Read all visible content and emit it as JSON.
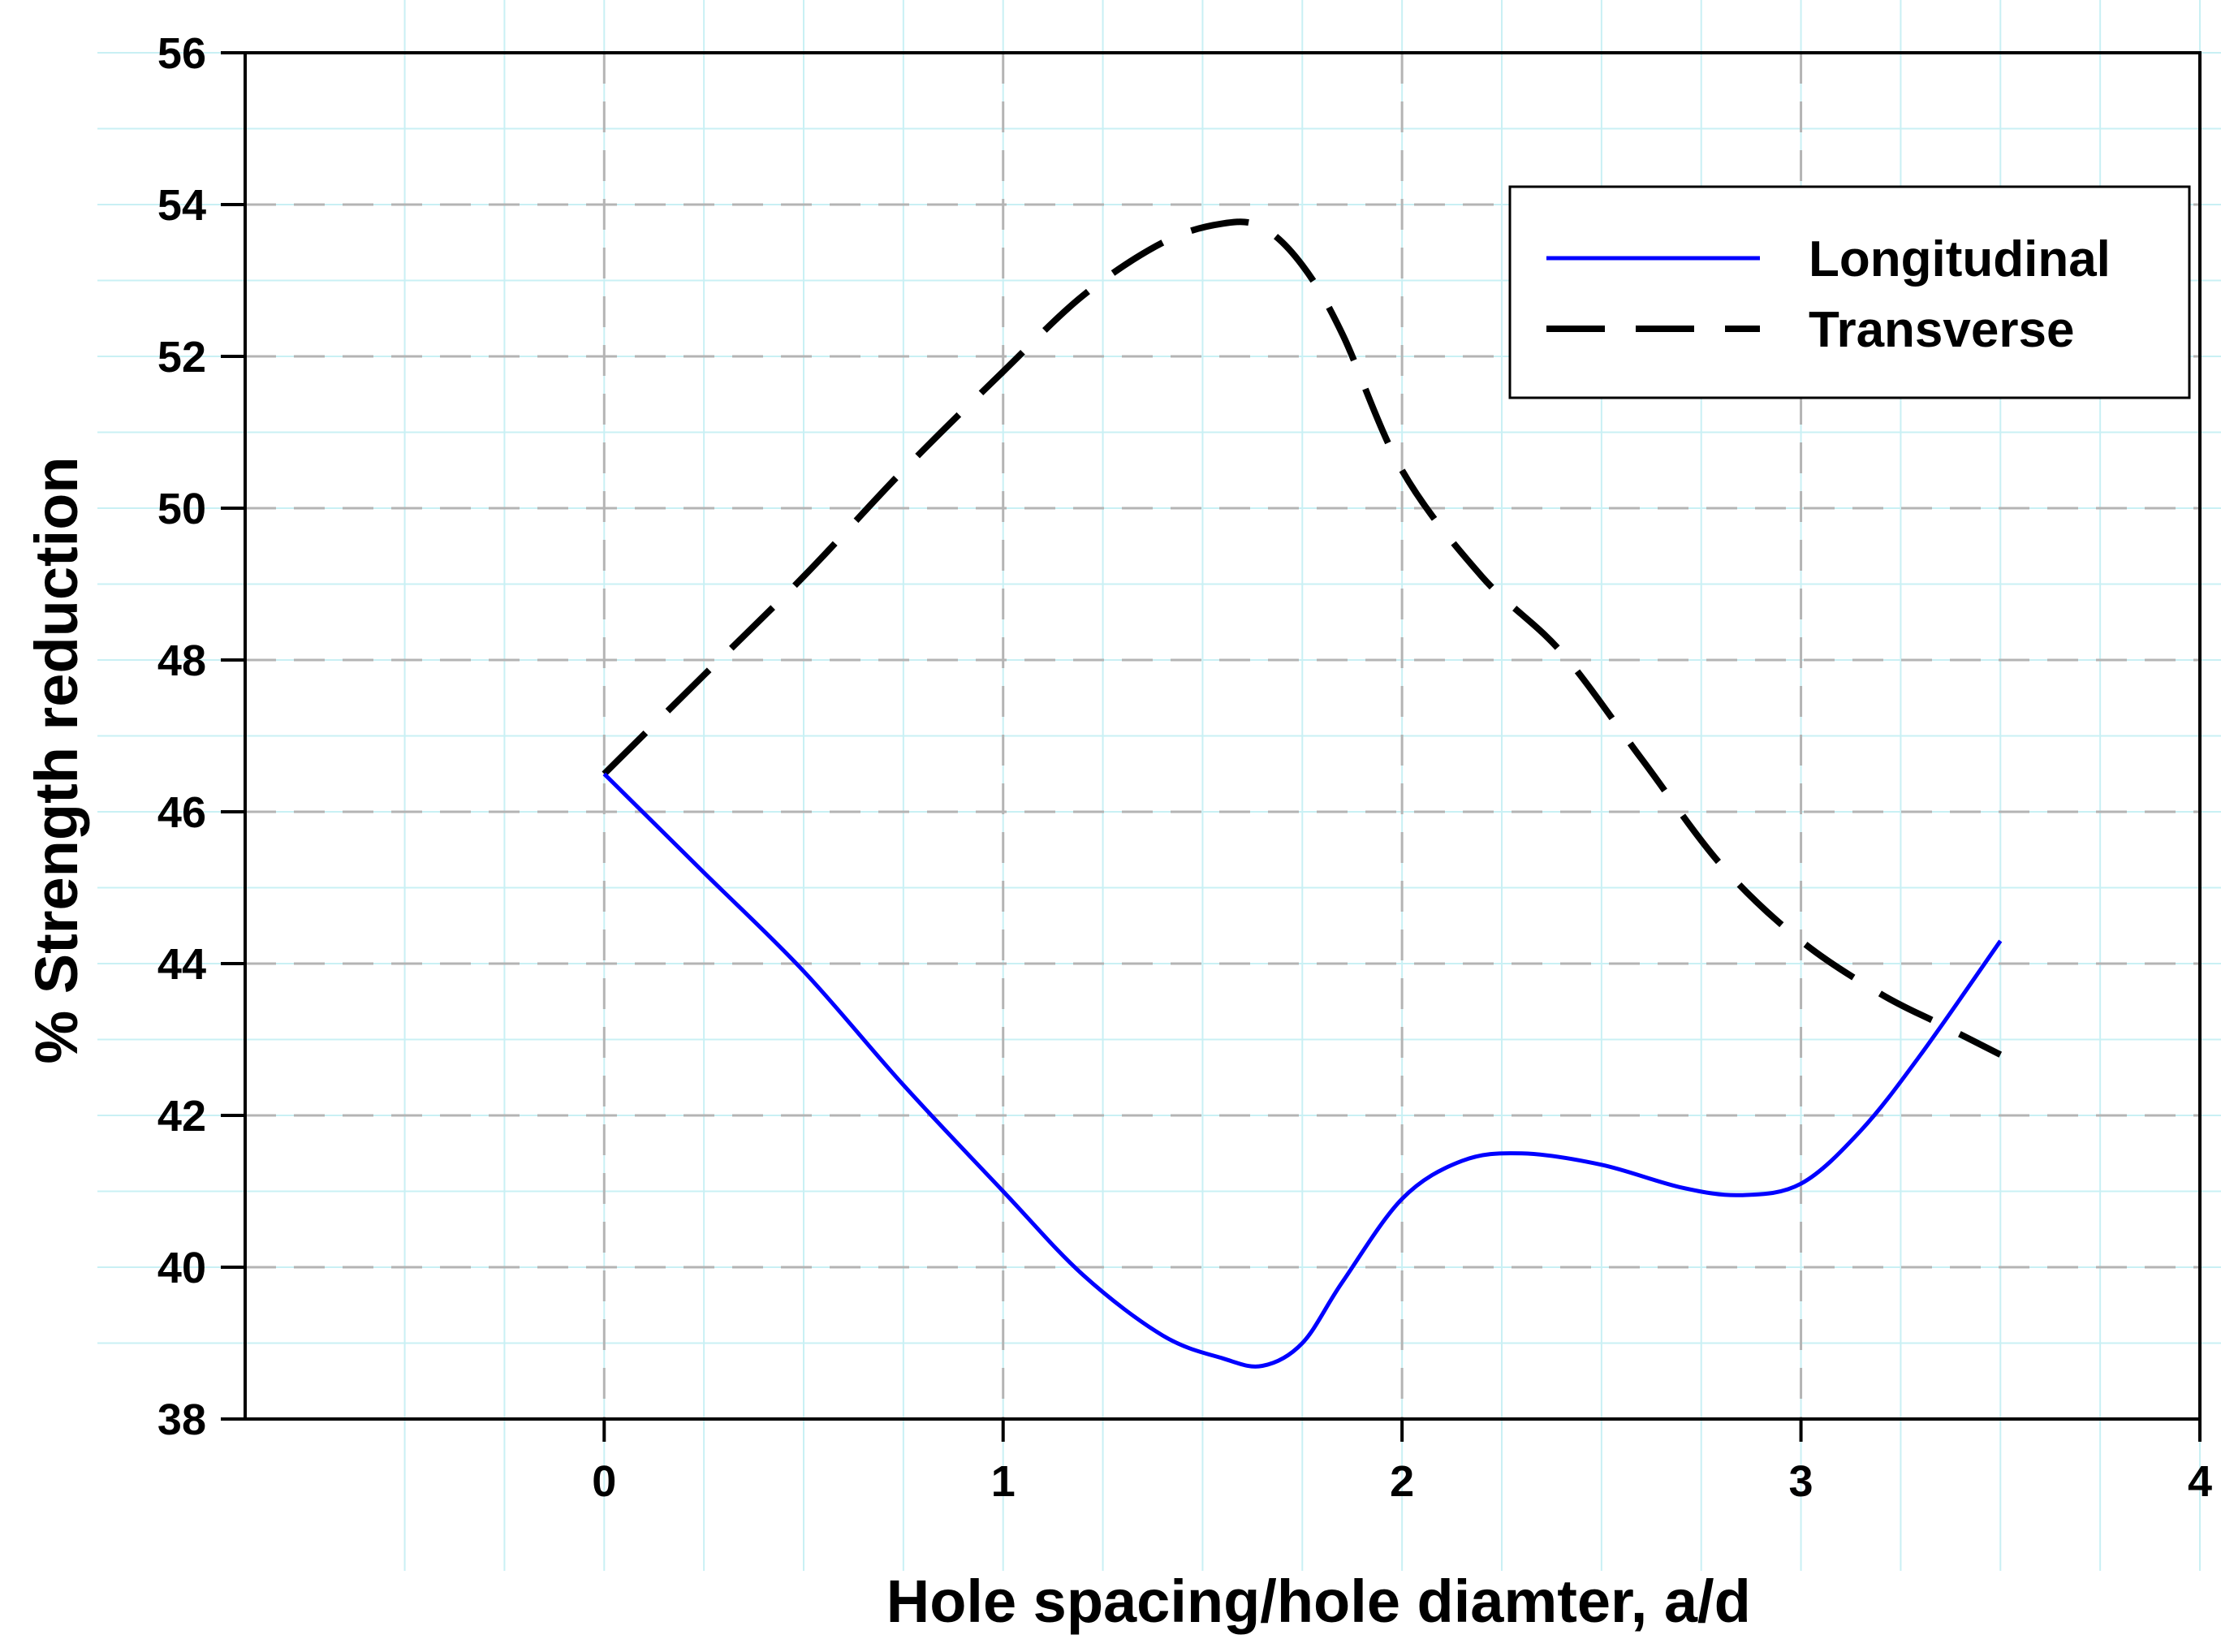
{
  "chart_data": {
    "type": "line",
    "title": "",
    "xlabel": "Hole spacing/hole diamter, a/d",
    "ylabel": "% Strength reduction",
    "xlim": [
      -0.9,
      4
    ],
    "ylim": [
      38,
      56
    ],
    "x_ticks": [
      0,
      1,
      2,
      3,
      4
    ],
    "x_tick_labels": [
      "0",
      "1",
      "2",
      "3",
      "4"
    ],
    "y_ticks": [
      38,
      40,
      42,
      44,
      46,
      48,
      50,
      52,
      54,
      56
    ],
    "y_tick_labels": [
      "38",
      "40",
      "42",
      "44",
      "46",
      "48",
      "50",
      "52",
      "54",
      "56"
    ],
    "grid": true,
    "legend_position": "top-right",
    "series": [
      {
        "name": "Longitudinal",
        "color": "#0000ff",
        "dash": "solid",
        "x": [
          0,
          0.25,
          0.5,
          0.75,
          1.0,
          1.2,
          1.4,
          1.55,
          1.65,
          1.75,
          1.85,
          2.0,
          2.15,
          2.3,
          2.5,
          2.7,
          2.85,
          3.0,
          3.15,
          3.3,
          3.5
        ],
        "y": [
          46.5,
          45.2,
          43.9,
          42.4,
          41.0,
          39.9,
          39.1,
          38.8,
          38.7,
          39.0,
          39.8,
          40.9,
          41.4,
          41.5,
          41.35,
          41.05,
          40.95,
          41.1,
          41.8,
          42.8,
          44.3
        ]
      },
      {
        "name": "Transverse",
        "color": "#000000",
        "dash": "dashed",
        "x": [
          0,
          0.25,
          0.5,
          0.75,
          1.0,
          1.2,
          1.4,
          1.55,
          1.65,
          1.75,
          1.85,
          2.0,
          2.2,
          2.4,
          2.6,
          2.8,
          3.0,
          3.2,
          3.35,
          3.5
        ],
        "y": [
          46.5,
          47.8,
          49.1,
          50.5,
          51.8,
          52.8,
          53.5,
          53.75,
          53.7,
          53.2,
          52.3,
          50.5,
          49.1,
          48.1,
          46.7,
          45.3,
          44.3,
          43.6,
          43.2,
          42.8
        ]
      }
    ]
  }
}
